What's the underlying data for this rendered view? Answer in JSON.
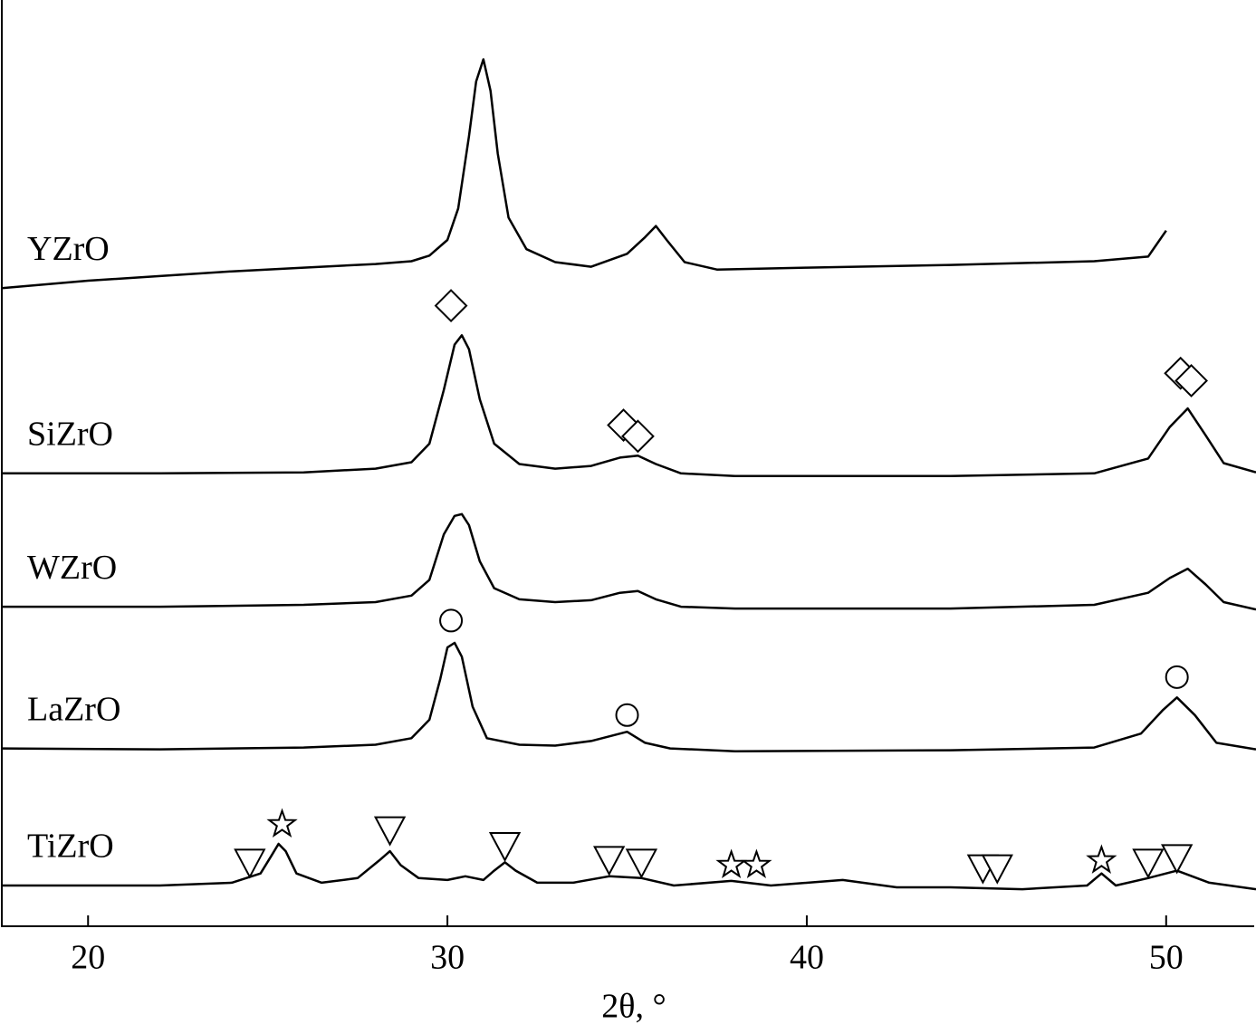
{
  "chart_data": {
    "type": "line",
    "xlabel": "2θ, °",
    "xlim": [
      17.6,
      52.5
    ],
    "xticks": [
      20,
      30,
      40,
      50
    ],
    "ylim": [
      0,
      100
    ],
    "color": "#000000",
    "series": [
      {
        "name": "YZrO",
        "color": "#000000",
        "x": [
          17.6,
          20,
          22,
          24,
          26,
          28,
          29,
          29.5,
          30,
          30.3,
          30.6,
          30.8,
          31.0,
          31.2,
          31.4,
          31.7,
          32.2,
          33,
          34,
          35,
          35.5,
          35.8,
          36.1,
          36.6,
          37.5,
          40,
          44,
          48,
          49.5,
          50
        ],
        "values": [
          68.9,
          69.7,
          70.2,
          70.7,
          71.1,
          71.5,
          71.8,
          72.4,
          74.1,
          77.5,
          85.3,
          91.2,
          93.6,
          90.2,
          83.4,
          76.5,
          73.1,
          71.7,
          71.2,
          72.6,
          74.4,
          75.6,
          74.1,
          71.7,
          70.9,
          71.1,
          71.4,
          71.8,
          72.3,
          75.1
        ]
      },
      {
        "name": "SiZrO",
        "color": "#000000",
        "x": [
          17.6,
          22,
          26,
          28,
          29,
          29.5,
          29.9,
          30.2,
          30.4,
          30.6,
          30.9,
          31.3,
          32,
          33,
          34,
          34.8,
          35.3,
          35.8,
          36.5,
          38,
          44,
          48,
          49.5,
          50.1,
          50.6,
          51.1,
          51.6,
          52.5
        ],
        "values": [
          48.9,
          48.9,
          49.0,
          49.4,
          50.1,
          52.1,
          57.9,
          62.8,
          63.8,
          62.3,
          56.9,
          52.1,
          49.9,
          49.4,
          49.7,
          50.6,
          50.8,
          49.9,
          48.9,
          48.6,
          48.6,
          48.9,
          50.5,
          53.9,
          55.9,
          53.0,
          50.0,
          49.0
        ]
      },
      {
        "name": "WZrO",
        "color": "#000000",
        "x": [
          17.6,
          22,
          26,
          28,
          29,
          29.5,
          29.9,
          30.2,
          30.4,
          30.6,
          30.9,
          31.3,
          32,
          33,
          34,
          34.8,
          35.3,
          35.8,
          36.5,
          38,
          44,
          48,
          49.5,
          50.1,
          50.6,
          51.1,
          51.6,
          52.5
        ],
        "values": [
          34.5,
          34.5,
          34.7,
          35.0,
          35.7,
          37.4,
          42.3,
          44.3,
          44.5,
          43.3,
          39.4,
          36.5,
          35.3,
          35.0,
          35.2,
          36.0,
          36.2,
          35.3,
          34.5,
          34.3,
          34.3,
          34.7,
          36.0,
          37.6,
          38.6,
          36.9,
          35.0,
          34.2
        ]
      },
      {
        "name": "LaZrO",
        "color": "#000000",
        "x": [
          17.6,
          22,
          26,
          28,
          29,
          29.5,
          29.8,
          30.0,
          30.2,
          30.4,
          30.7,
          31.1,
          32,
          33,
          34,
          34.6,
          35.0,
          35.5,
          36.2,
          38,
          44,
          48,
          49.3,
          49.9,
          50.3,
          50.8,
          51.4,
          52.5
        ],
        "values": [
          19.2,
          19.1,
          19.3,
          19.6,
          20.3,
          22.3,
          26.7,
          30.1,
          30.6,
          29.1,
          23.7,
          20.3,
          19.6,
          19.5,
          20.0,
          20.6,
          21.0,
          19.8,
          19.2,
          18.9,
          19.0,
          19.3,
          20.8,
          23.3,
          24.7,
          22.8,
          19.8,
          19.1
        ]
      },
      {
        "name": "TiZrO",
        "color": "#000000",
        "x": [
          17.6,
          22,
          24,
          24.8,
          25.1,
          25.3,
          25.5,
          25.8,
          26.5,
          27.5,
          28.1,
          28.4,
          28.7,
          29.2,
          30.0,
          30.5,
          31.0,
          31.3,
          31.6,
          31.9,
          32.5,
          33.5,
          34.5,
          35.4,
          36.3,
          37.9,
          39,
          41,
          42.5,
          44,
          46,
          47.8,
          48.2,
          48.6,
          49.5,
          50.3,
          51.2,
          52.5
        ],
        "values": [
          4.4,
          4.4,
          4.7,
          5.7,
          7.6,
          8.9,
          8.1,
          5.7,
          4.7,
          5.2,
          7.1,
          8.1,
          6.6,
          5.2,
          5.0,
          5.4,
          5.0,
          6.0,
          6.9,
          6.0,
          4.7,
          4.7,
          5.4,
          5.2,
          4.4,
          4.9,
          4.4,
          5.0,
          4.2,
          4.2,
          4.0,
          4.4,
          5.7,
          4.4,
          5.2,
          6.0,
          4.7,
          4.0
        ]
      }
    ],
    "annotations": [
      {
        "symbol": "diamond",
        "x": 30.1,
        "y": 67.0
      },
      {
        "symbol": "diamond",
        "x": 34.9,
        "y": 54.1
      },
      {
        "symbol": "diamond",
        "x": 35.3,
        "y": 52.9
      },
      {
        "symbol": "diamond",
        "x": 50.4,
        "y": 59.7
      },
      {
        "symbol": "diamond",
        "x": 50.7,
        "y": 58.9
      },
      {
        "symbol": "circle",
        "x": 30.1,
        "y": 33.0
      },
      {
        "symbol": "circle",
        "x": 35.0,
        "y": 22.8
      },
      {
        "symbol": "circle",
        "x": 50.3,
        "y": 26.9
      },
      {
        "symbol": "triangle",
        "x": 24.5,
        "y": 6.8
      },
      {
        "symbol": "triangle",
        "x": 28.4,
        "y": 10.3
      },
      {
        "symbol": "triangle",
        "x": 31.6,
        "y": 8.6
      },
      {
        "symbol": "triangle",
        "x": 34.5,
        "y": 7.1
      },
      {
        "symbol": "triangle",
        "x": 35.4,
        "y": 6.8
      },
      {
        "symbol": "triangle",
        "x": 44.9,
        "y": 6.2
      },
      {
        "symbol": "triangle",
        "x": 45.3,
        "y": 6.2
      },
      {
        "symbol": "triangle",
        "x": 49.5,
        "y": 6.8
      },
      {
        "symbol": "triangle",
        "x": 50.3,
        "y": 7.3
      },
      {
        "symbol": "star",
        "x": 25.4,
        "y": 11.0
      },
      {
        "symbol": "star",
        "x": 37.9,
        "y": 6.6
      },
      {
        "symbol": "star",
        "x": 38.6,
        "y": 6.6
      },
      {
        "symbol": "star",
        "x": 48.2,
        "y": 7.1
      }
    ]
  }
}
